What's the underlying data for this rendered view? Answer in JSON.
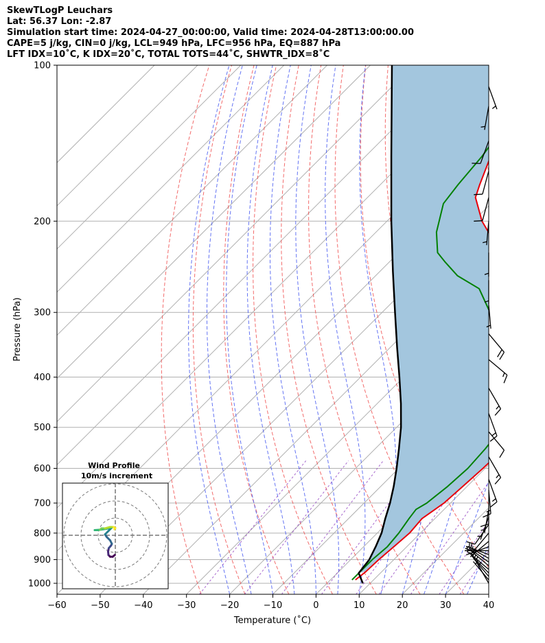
{
  "header": {
    "line1": "SkewTLogP Leuchars",
    "line2": "Lat: 56.37   Lon: -2.87",
    "line3": "Simulation start time: 2024-04-27_00:00:00, Valid time: 2024-04-28T13:00:00.00",
    "line4": "CAPE=5 j/kg, CIN=0 j/kg, LCL=949 hPa, LFC=956 hPa, EQ=887 hPa",
    "line5": "LFT IDX=10˚C, K IDX=20˚C, TOTAL TOTS=44˚C, SHWTR_IDX=8˚C"
  },
  "chart_data": {
    "type": "skew-t log-p",
    "xlabel": "Temperature (˚C)",
    "ylabel": "Pressure (hPa)",
    "xlim": [
      -60,
      40
    ],
    "ylim": [
      1050,
      100
    ],
    "x_ticks": [
      "−60",
      "−50",
      "−40",
      "−30",
      "−20",
      "−10",
      "0",
      "10",
      "20",
      "30",
      "40"
    ],
    "y_ticks": [
      "1000",
      "900",
      "800",
      "700",
      "600",
      "500",
      "400",
      "300",
      "200",
      "100"
    ],
    "y_tick_values": [
      1000,
      900,
      800,
      700,
      600,
      500,
      400,
      300,
      200,
      100
    ],
    "grid": true,
    "series": [
      {
        "color": "#e8000b",
        "style": "temperature",
        "points": [
          [
            985,
            5.8
          ],
          [
            950,
            6.3
          ],
          [
            900,
            6.5
          ],
          [
            850,
            7.0
          ],
          [
            800,
            7.5
          ],
          [
            750,
            7.0
          ],
          [
            700,
            8.5
          ],
          [
            650,
            9.0
          ],
          [
            600,
            9.5
          ],
          [
            550,
            9.8
          ],
          [
            500,
            9.8
          ],
          [
            450,
            9.5
          ],
          [
            400,
            8.5
          ],
          [
            370,
            7.0
          ],
          [
            345,
            5.0
          ],
          [
            330,
            2.5
          ],
          [
            310,
            -2.0
          ],
          [
            293,
            -10.0
          ],
          [
            286,
            -16.0
          ],
          [
            270,
            -23.0
          ],
          [
            260,
            -22.0
          ],
          [
            250,
            -23.0
          ],
          [
            240,
            -26.0
          ],
          [
            230,
            -32.0
          ],
          [
            220,
            -38.5
          ],
          [
            215,
            -42.0
          ],
          [
            200,
            -48.0
          ],
          [
            180,
            -55.0
          ],
          [
            170,
            -57.0
          ],
          [
            150,
            -61.0
          ],
          [
            130,
            -64.5
          ],
          [
            120,
            -66.5
          ],
          [
            110,
            -68.5
          ],
          [
            100,
            -71.0
          ]
        ]
      },
      {
        "color": "#008000",
        "style": "dewpoint",
        "points": [
          [
            985,
            5.0
          ],
          [
            950,
            5.0
          ],
          [
            900,
            5.0
          ],
          [
            850,
            5.5
          ],
          [
            800,
            5.0
          ],
          [
            750,
            4.0
          ],
          [
            720,
            3.5
          ],
          [
            700,
            4.5
          ],
          [
            650,
            5.5
          ],
          [
            600,
            6.0
          ],
          [
            550,
            5.5
          ],
          [
            500,
            4.5
          ],
          [
            450,
            3.5
          ],
          [
            410,
            3.0
          ],
          [
            390,
            -1.0
          ],
          [
            380,
            -5.0
          ],
          [
            360,
            -15.0
          ],
          [
            345,
            -17.0
          ],
          [
            330,
            -19.0
          ],
          [
            300,
            -25.0
          ],
          [
            270,
            -33.0
          ],
          [
            255,
            -41.0
          ],
          [
            240,
            -47.0
          ],
          [
            230,
            -51.0
          ],
          [
            210,
            -56.0
          ],
          [
            185,
            -61.0
          ],
          [
            170,
            -62.0
          ],
          [
            150,
            -63.0
          ],
          [
            130,
            -65.0
          ],
          [
            110,
            -69.0
          ],
          [
            100,
            -71.0
          ]
        ]
      },
      {
        "color": "#000000",
        "style": "parcel",
        "points": [
          [
            1000,
            8.3
          ],
          [
            956,
            5.0
          ],
          [
            900,
            4.3
          ],
          [
            850,
            2.8
          ],
          [
            800,
            1.0
          ],
          [
            750,
            -1.5
          ],
          [
            700,
            -4.0
          ],
          [
            650,
            -7.0
          ],
          [
            600,
            -10.5
          ],
          [
            550,
            -14.5
          ],
          [
            500,
            -19.0
          ],
          [
            450,
            -24.5
          ],
          [
            400,
            -31.0
          ],
          [
            350,
            -38.5
          ],
          [
            300,
            -47.0
          ],
          [
            250,
            -57.0
          ],
          [
            200,
            -69.0
          ],
          [
            150,
            -84.0
          ],
          [
            100,
            -105.0
          ]
        ]
      }
    ],
    "cape_fill_color": "#a3c6de",
    "wind_barbs": [
      {
        "p": 1000,
        "dir": 330,
        "spd": 5
      },
      {
        "p": 985,
        "dir": 320,
        "spd": 7
      },
      {
        "p": 970,
        "dir": 320,
        "spd": 7
      },
      {
        "p": 955,
        "dir": 315,
        "spd": 8
      },
      {
        "p": 940,
        "dir": 310,
        "spd": 9
      },
      {
        "p": 925,
        "dir": 310,
        "spd": 9
      },
      {
        "p": 910,
        "dir": 305,
        "spd": 9
      },
      {
        "p": 895,
        "dir": 300,
        "spd": 8
      },
      {
        "p": 880,
        "dir": 290,
        "spd": 7
      },
      {
        "p": 865,
        "dir": 270,
        "spd": 6
      },
      {
        "p": 850,
        "dir": 250,
        "spd": 7
      },
      {
        "p": 830,
        "dir": 230,
        "spd": 8
      },
      {
        "p": 800,
        "dir": 220,
        "spd": 10
      },
      {
        "p": 770,
        "dir": 215,
        "spd": 10
      },
      {
        "p": 745,
        "dir": 200,
        "spd": 6
      },
      {
        "p": 720,
        "dir": 190,
        "spd": 5
      },
      {
        "p": 690,
        "dir": 180,
        "spd": 10
      },
      {
        "p": 660,
        "dir": 175,
        "spd": 15
      },
      {
        "p": 630,
        "dir": 160,
        "spd": 15
      },
      {
        "p": 570,
        "dir": 150,
        "spd": 15
      },
      {
        "p": 510,
        "dir": 140,
        "spd": 10
      },
      {
        "p": 470,
        "dir": 160,
        "spd": 15
      },
      {
        "p": 420,
        "dir": 150,
        "spd": 15
      },
      {
        "p": 370,
        "dir": 130,
        "spd": 15
      },
      {
        "p": 330,
        "dir": 140,
        "spd": 20
      },
      {
        "p": 290,
        "dir": 175,
        "spd": 5
      },
      {
        "p": 260,
        "dir": 180,
        "spd": 5
      },
      {
        "p": 230,
        "dir": 180,
        "spd": 5
      },
      {
        "p": 200,
        "dir": 185,
        "spd": 5
      },
      {
        "p": 180,
        "dir": 195,
        "spd": 10
      },
      {
        "p": 160,
        "dir": 195,
        "spd": 10
      },
      {
        "p": 140,
        "dir": 200,
        "spd": 10
      },
      {
        "p": 120,
        "dir": 190,
        "spd": 5
      },
      {
        "p": 110,
        "dir": 160,
        "spd": 5
      }
    ],
    "hodograph": {
      "title": "Wind Profile",
      "subtitle": "10m/s increment",
      "rings_ms": [
        10,
        20,
        30
      ],
      "uv": [
        [
          -0.3,
          -11.5
        ],
        [
          -1.5,
          -12.5
        ],
        [
          -3.0,
          -12.5
        ],
        [
          -4.0,
          -11.5
        ],
        [
          -4.2,
          -9.5
        ],
        [
          -3.8,
          -7.5
        ],
        [
          -2.5,
          -6.0
        ],
        [
          -2.0,
          -5.0
        ],
        [
          -3.0,
          -3.0
        ],
        [
          -5.0,
          -1.0
        ],
        [
          -6.0,
          0.5
        ],
        [
          -4.0,
          2.5
        ],
        [
          -2.0,
          4.5
        ],
        [
          -4.0,
          4.0
        ],
        [
          -7.0,
          3.5
        ],
        [
          -10.0,
          3.0
        ],
        [
          -12.0,
          3.0
        ],
        [
          -9.0,
          3.2
        ],
        [
          -8.0,
          4.0
        ],
        [
          -6.0,
          4.0
        ],
        [
          -3.0,
          4.8
        ],
        [
          -1.0,
          4.8
        ],
        [
          0.0,
          4.2
        ],
        [
          -0.5,
          3.5
        ]
      ]
    }
  }
}
